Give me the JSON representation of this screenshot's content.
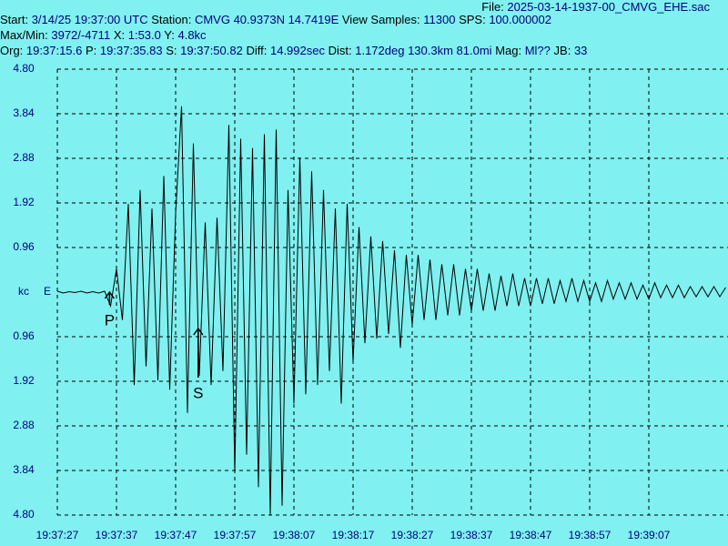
{
  "chart_data": {
    "type": "line",
    "info_lines": [
      [
        {
          "label": "File:",
          "value": "2025-03-14-1937-00_CMVG_EHE.sac"
        }
      ],
      [
        {
          "label": "Start:",
          "value": "3/14/25 19:37:00 UTC"
        },
        {
          "label": "Station:",
          "value": "CMVG 40.9373N 14.7419E"
        },
        {
          "label": "View Samples:",
          "value": "11300"
        },
        {
          "label": "SPS:",
          "value": "100.000002"
        }
      ],
      [
        {
          "label": "Max/Min:",
          "value": "3972/-4711"
        },
        {
          "label": "X:",
          "value": "1:53.0"
        },
        {
          "label": "Y:",
          "value": "4.8kc"
        }
      ],
      [
        {
          "label": "Org:",
          "value": "19:37:15.6"
        },
        {
          "label": "P:",
          "value": "19:37:35.83"
        },
        {
          "label": "S:",
          "value": "19:37:50.82"
        },
        {
          "label": "Diff:",
          "value": "14.992sec"
        },
        {
          "label": "Dist:",
          "value": "1.172deg 130.3km 81.0mi"
        },
        {
          "label": "Mag:",
          "value": "Ml??"
        },
        {
          "label": "JB:",
          "value": "33"
        }
      ]
    ],
    "y_unit": "kc",
    "channel": "E",
    "annotations": [
      {
        "text": "P",
        "x": 70655.83
      },
      {
        "text": "S",
        "x": 70670.82
      }
    ],
    "xlim": [
      70647,
      70760
    ],
    "ylim": [
      -4.8,
      4.8
    ],
    "xticks": [
      {
        "value": 70647,
        "label": "19:37:27"
      },
      {
        "value": 70657,
        "label": "19:37:37"
      },
      {
        "value": 70667,
        "label": "19:37:47"
      },
      {
        "value": 70677,
        "label": "19:37:57"
      },
      {
        "value": 70687,
        "label": "19:38:07"
      },
      {
        "value": 70697,
        "label": "19:38:17"
      },
      {
        "value": 70707,
        "label": "19:38:27"
      },
      {
        "value": 70717,
        "label": "19:38:37"
      },
      {
        "value": 70727,
        "label": "19:38:47"
      },
      {
        "value": 70737,
        "label": "19:38:57"
      },
      {
        "value": 70747,
        "label": "19:39:07"
      }
    ],
    "yticks": [
      {
        "value": 4.8,
        "label": "4.80"
      },
      {
        "value": 3.84,
        "label": "3.84"
      },
      {
        "value": 2.88,
        "label": "2.88"
      },
      {
        "value": 1.92,
        "label": "1.92"
      },
      {
        "value": 0.96,
        "label": "0.96"
      },
      {
        "value": -0.96,
        "label": "0.96"
      },
      {
        "value": -1.92,
        "label": "1.92"
      },
      {
        "value": -2.88,
        "label": "2.88"
      },
      {
        "value": -3.84,
        "label": "3.84"
      },
      {
        "value": -4.8,
        "label": "4.80"
      }
    ],
    "grid": true,
    "series": [
      {
        "color": "#000000",
        "x": [
          70647,
          70648,
          70649,
          70650,
          70651,
          70652,
          70653,
          70654,
          70655,
          70656,
          70657,
          70658,
          70659,
          70660,
          70661,
          70662,
          70663,
          70664,
          70665,
          70666,
          70667,
          70668,
          70669,
          70670,
          70671,
          70672,
          70673,
          70674,
          70675,
          70676,
          70677,
          70678,
          70679,
          70680,
          70681,
          70682,
          70683,
          70684,
          70685,
          70686,
          70687,
          70688,
          70689,
          70690,
          70691,
          70692,
          70693,
          70694,
          70695,
          70696,
          70697,
          70698,
          70699,
          70700,
          70701,
          70702,
          70703,
          70704,
          70705,
          70706,
          70707,
          70708,
          70709,
          70710,
          70711,
          70712,
          70713,
          70714,
          70715,
          70716,
          70717,
          70718,
          70719,
          70720,
          70721,
          70722,
          70723,
          70724,
          70725,
          70726,
          70727,
          70728,
          70729,
          70730,
          70731,
          70732,
          70733,
          70734,
          70735,
          70736,
          70737,
          70738,
          70739,
          70740,
          70741,
          70742,
          70743,
          70744,
          70745,
          70746,
          70747,
          70748,
          70749,
          70750,
          70751,
          70752,
          70753,
          70754,
          70755,
          70756,
          70757,
          70758,
          70759,
          70760
        ],
        "values": [
          0.02,
          -0.02,
          0.01,
          -0.01,
          0.02,
          -0.02,
          0.01,
          -0.02,
          0.02,
          -0.3,
          0.5,
          -0.6,
          1.9,
          -2.0,
          2.2,
          -1.6,
          1.8,
          -1.9,
          2.5,
          -2.1,
          1.7,
          4.0,
          -2.6,
          3.2,
          -1.8,
          1.5,
          -2.0,
          1.6,
          -1.7,
          3.6,
          -3.9,
          3.3,
          -3.5,
          3.1,
          -4.2,
          3.4,
          -4.8,
          3.5,
          -4.6,
          2.2,
          -2.4,
          2.9,
          -2.2,
          2.6,
          -2.0,
          2.2,
          -1.7,
          1.8,
          -2.4,
          1.9,
          -1.5,
          1.4,
          -1.1,
          1.2,
          -1.0,
          1.1,
          -0.9,
          0.9,
          -1.2,
          0.8,
          -0.7,
          0.8,
          -0.6,
          0.7,
          -0.6,
          0.6,
          -0.5,
          0.6,
          -0.5,
          0.5,
          -0.4,
          0.5,
          -0.4,
          0.4,
          -0.4,
          0.35,
          -0.3,
          0.4,
          -0.3,
          0.3,
          -0.3,
          0.3,
          -0.25,
          0.3,
          -0.25,
          0.25,
          -0.2,
          0.3,
          -0.2,
          0.25,
          -0.2,
          0.2,
          -0.2,
          0.25,
          -0.15,
          0.2,
          -0.15,
          0.2,
          -0.15,
          0.15,
          -0.15,
          0.2,
          -0.12,
          0.15,
          -0.12,
          0.15,
          -0.12,
          0.12,
          -0.1,
          0.12,
          -0.1,
          0.12,
          -0.1,
          0.1
        ]
      }
    ]
  }
}
